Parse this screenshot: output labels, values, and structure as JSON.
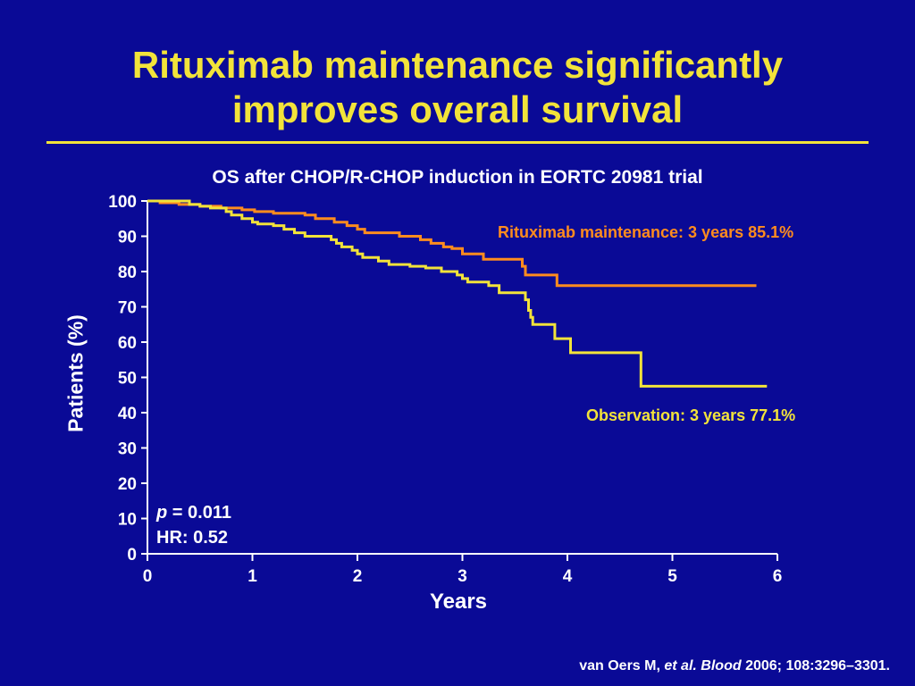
{
  "slide": {
    "title_line1": "Rituximab maintenance significantly",
    "title_line2": "improves overall survival",
    "citation_authors": "van Oers M, ",
    "citation_etal": "et al.",
    "citation_journal": "Blood",
    "citation_rest": " 2006; 108:3296–3301."
  },
  "annotations": {
    "p_symbol": "p",
    "p_value": " = 0.011",
    "hr": "HR: 0.52"
  },
  "colors": {
    "background": "#0a0a96",
    "title": "#f2e33a",
    "rituximab": "#ff8c1e",
    "observation": "#f2e33a",
    "axis": "#ffffff"
  },
  "chart_data": {
    "type": "line",
    "step": true,
    "title": "OS after CHOP/R-CHOP induction in EORTC 20981 trial",
    "xlabel": "Years",
    "ylabel": "Patients (%)",
    "xlim": [
      0,
      6
    ],
    "ylim": [
      0,
      100
    ],
    "xticks": [
      "0",
      "1",
      "2",
      "3",
      "4",
      "5",
      "6"
    ],
    "yticks": [
      "0",
      "10",
      "20",
      "30",
      "40",
      "50",
      "60",
      "70",
      "80",
      "90",
      "100"
    ],
    "grid": false,
    "series": [
      {
        "name": "Rituximab maintenance",
        "label": "Rituximab maintenance: 3 years 85.1%",
        "color": "#ff8c1e",
        "points": [
          [
            0,
            100
          ],
          [
            0.12,
            99.5
          ],
          [
            0.3,
            99
          ],
          [
            0.5,
            98.5
          ],
          [
            0.7,
            98
          ],
          [
            0.9,
            97.5
          ],
          [
            1.02,
            97
          ],
          [
            1.2,
            96.5
          ],
          [
            1.45,
            96.5
          ],
          [
            1.5,
            96
          ],
          [
            1.6,
            95
          ],
          [
            1.78,
            94
          ],
          [
            1.9,
            93
          ],
          [
            2.0,
            92
          ],
          [
            2.07,
            91
          ],
          [
            2.3,
            91
          ],
          [
            2.4,
            90
          ],
          [
            2.6,
            89
          ],
          [
            2.7,
            88
          ],
          [
            2.82,
            87
          ],
          [
            2.9,
            86.5
          ],
          [
            3.0,
            85
          ],
          [
            3.15,
            85
          ],
          [
            3.2,
            83.5
          ],
          [
            3.4,
            83.5
          ],
          [
            3.57,
            81.5
          ],
          [
            3.6,
            79
          ],
          [
            3.78,
            79
          ],
          [
            3.9,
            76
          ],
          [
            5.8,
            76
          ]
        ]
      },
      {
        "name": "Observation",
        "label": "Observation: 3 years 77.1%",
        "color": "#f2e33a",
        "points": [
          [
            0,
            100
          ],
          [
            0.35,
            100
          ],
          [
            0.4,
            99
          ],
          [
            0.5,
            98.5
          ],
          [
            0.6,
            98
          ],
          [
            0.75,
            97
          ],
          [
            0.8,
            96
          ],
          [
            0.9,
            95
          ],
          [
            1.0,
            94
          ],
          [
            1.05,
            93.5
          ],
          [
            1.2,
            93
          ],
          [
            1.3,
            92
          ],
          [
            1.4,
            91
          ],
          [
            1.5,
            90
          ],
          [
            1.7,
            90
          ],
          [
            1.75,
            89
          ],
          [
            1.8,
            88
          ],
          [
            1.85,
            87
          ],
          [
            1.95,
            86
          ],
          [
            2.0,
            85
          ],
          [
            2.05,
            84
          ],
          [
            2.2,
            83
          ],
          [
            2.3,
            82
          ],
          [
            2.5,
            81.5
          ],
          [
            2.65,
            81
          ],
          [
            2.8,
            80
          ],
          [
            2.95,
            79
          ],
          [
            3.0,
            78
          ],
          [
            3.05,
            77
          ],
          [
            3.25,
            76
          ],
          [
            3.35,
            74
          ],
          [
            3.6,
            72
          ],
          [
            3.63,
            69
          ],
          [
            3.65,
            67
          ],
          [
            3.67,
            65
          ],
          [
            3.85,
            65
          ],
          [
            3.88,
            61
          ],
          [
            4.0,
            61
          ],
          [
            4.03,
            57
          ],
          [
            4.65,
            57
          ],
          [
            4.7,
            47.5
          ],
          [
            5.9,
            47.5
          ]
        ]
      }
    ]
  }
}
